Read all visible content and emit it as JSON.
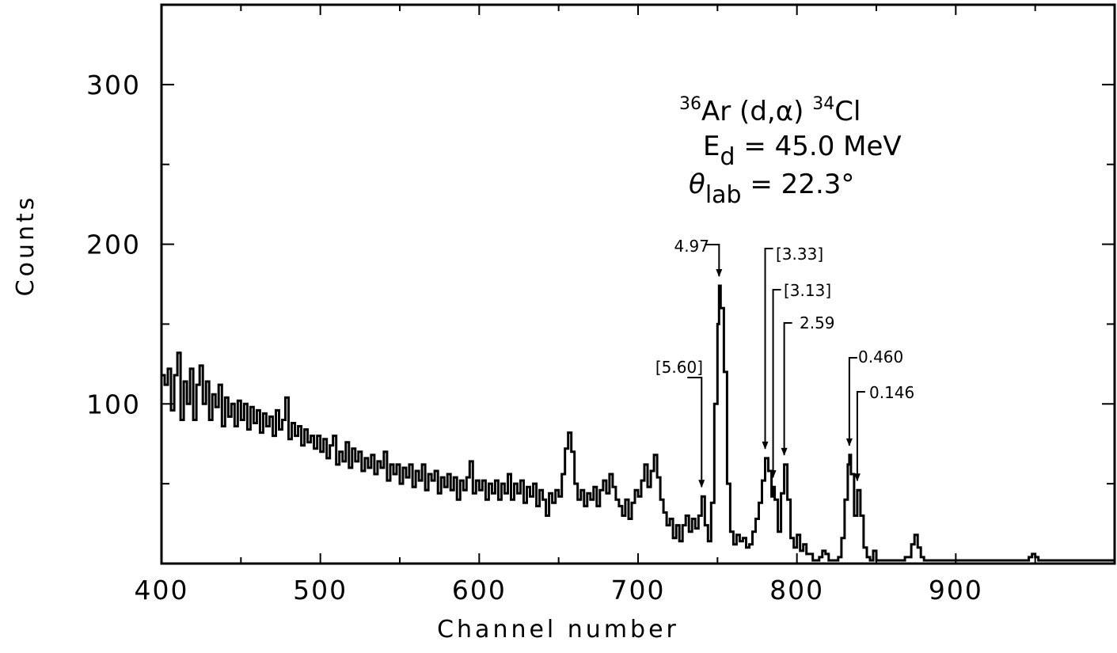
{
  "chart_data": {
    "type": "line",
    "xlabel": "Channel number",
    "ylabel": "Counts",
    "xlim": [
      400,
      1000
    ],
    "ylim": [
      0,
      350
    ],
    "x_ticks": [
      400,
      500,
      600,
      700,
      800,
      900
    ],
    "y_ticks": [
      100,
      200,
      300
    ],
    "x_minor_step": 50,
    "y_minor_step": 50,
    "grid": false,
    "annotation": {
      "reaction": {
        "a": "36",
        "target": "Ar",
        "mid": " (d,α) ",
        "b": "34",
        "product": "Cl"
      },
      "energy": {
        "sym": "E",
        "sub": "d",
        "rest": " = 45.0 MeV"
      },
      "angle": {
        "sym": "θ",
        "sub": "lab",
        "rest": " = 22.3°"
      }
    },
    "peaks": [
      {
        "label": "[5.60]",
        "x": 740,
        "y": 42
      },
      {
        "label": "4.97",
        "x": 751,
        "y": 174
      },
      {
        "label": "[3.33]",
        "x": 780,
        "y": 66
      },
      {
        "label": "[3.13]",
        "x": 785,
        "y": 48
      },
      {
        "label": "2.59",
        "x": 792,
        "y": 62
      },
      {
        "label": "0.460",
        "x": 833,
        "y": 68
      },
      {
        "label": "0.146",
        "x": 838,
        "y": 46
      }
    ],
    "series": [
      {
        "values": [
          [
            400,
            118
          ],
          [
            402,
            112
          ],
          [
            404,
            122
          ],
          [
            406,
            96
          ],
          [
            408,
            118
          ],
          [
            410,
            132
          ],
          [
            412,
            90
          ],
          [
            414,
            114
          ],
          [
            416,
            100
          ],
          [
            418,
            122
          ],
          [
            420,
            90
          ],
          [
            422,
            112
          ],
          [
            424,
            124
          ],
          [
            426,
            100
          ],
          [
            428,
            114
          ],
          [
            430,
            90
          ],
          [
            432,
            106
          ],
          [
            434,
            98
          ],
          [
            436,
            112
          ],
          [
            438,
            86
          ],
          [
            440,
            104
          ],
          [
            442,
            92
          ],
          [
            444,
            100
          ],
          [
            446,
            86
          ],
          [
            448,
            102
          ],
          [
            450,
            90
          ],
          [
            452,
            100
          ],
          [
            454,
            84
          ],
          [
            456,
            98
          ],
          [
            458,
            88
          ],
          [
            460,
            96
          ],
          [
            462,
            82
          ],
          [
            464,
            94
          ],
          [
            466,
            86
          ],
          [
            468,
            92
          ],
          [
            470,
            80
          ],
          [
            472,
            96
          ],
          [
            474,
            84
          ],
          [
            476,
            90
          ],
          [
            478,
            104
          ],
          [
            480,
            78
          ],
          [
            482,
            88
          ],
          [
            484,
            80
          ],
          [
            486,
            86
          ],
          [
            488,
            74
          ],
          [
            490,
            84
          ],
          [
            492,
            76
          ],
          [
            494,
            80
          ],
          [
            496,
            72
          ],
          [
            498,
            80
          ],
          [
            500,
            70
          ],
          [
            502,
            78
          ],
          [
            504,
            66
          ],
          [
            506,
            74
          ],
          [
            508,
            80
          ],
          [
            510,
            62
          ],
          [
            512,
            70
          ],
          [
            514,
            64
          ],
          [
            516,
            76
          ],
          [
            518,
            60
          ],
          [
            520,
            72
          ],
          [
            522,
            64
          ],
          [
            524,
            70
          ],
          [
            526,
            58
          ],
          [
            528,
            66
          ],
          [
            530,
            60
          ],
          [
            532,
            68
          ],
          [
            534,
            56
          ],
          [
            536,
            64
          ],
          [
            538,
            60
          ],
          [
            540,
            70
          ],
          [
            542,
            52
          ],
          [
            544,
            62
          ],
          [
            546,
            56
          ],
          [
            548,
            62
          ],
          [
            550,
            50
          ],
          [
            552,
            60
          ],
          [
            554,
            54
          ],
          [
            556,
            62
          ],
          [
            558,
            48
          ],
          [
            560,
            58
          ],
          [
            562,
            52
          ],
          [
            564,
            62
          ],
          [
            566,
            46
          ],
          [
            568,
            56
          ],
          [
            570,
            52
          ],
          [
            572,
            58
          ],
          [
            574,
            44
          ],
          [
            576,
            54
          ],
          [
            578,
            48
          ],
          [
            580,
            56
          ],
          [
            582,
            46
          ],
          [
            584,
            54
          ],
          [
            586,
            40
          ],
          [
            588,
            52
          ],
          [
            590,
            46
          ],
          [
            592,
            54
          ],
          [
            594,
            64
          ],
          [
            596,
            44
          ],
          [
            598,
            52
          ],
          [
            600,
            46
          ],
          [
            602,
            52
          ],
          [
            604,
            40
          ],
          [
            606,
            50
          ],
          [
            608,
            44
          ],
          [
            610,
            52
          ],
          [
            612,
            40
          ],
          [
            614,
            50
          ],
          [
            616,
            44
          ],
          [
            618,
            56
          ],
          [
            620,
            40
          ],
          [
            622,
            50
          ],
          [
            624,
            44
          ],
          [
            626,
            52
          ],
          [
            628,
            38
          ],
          [
            630,
            48
          ],
          [
            632,
            42
          ],
          [
            634,
            50
          ],
          [
            636,
            36
          ],
          [
            638,
            46
          ],
          [
            640,
            40
          ],
          [
            642,
            30
          ],
          [
            644,
            44
          ],
          [
            646,
            38
          ],
          [
            648,
            46
          ],
          [
            650,
            42
          ],
          [
            652,
            56
          ],
          [
            654,
            72
          ],
          [
            656,
            82
          ],
          [
            658,
            70
          ],
          [
            660,
            50
          ],
          [
            662,
            40
          ],
          [
            664,
            46
          ],
          [
            666,
            36
          ],
          [
            668,
            44
          ],
          [
            670,
            40
          ],
          [
            672,
            48
          ],
          [
            674,
            36
          ],
          [
            676,
            46
          ],
          [
            678,
            52
          ],
          [
            680,
            44
          ],
          [
            682,
            56
          ],
          [
            684,
            48
          ],
          [
            686,
            40
          ],
          [
            688,
            36
          ],
          [
            690,
            30
          ],
          [
            692,
            40
          ],
          [
            694,
            28
          ],
          [
            696,
            38
          ],
          [
            698,
            46
          ],
          [
            700,
            42
          ],
          [
            702,
            52
          ],
          [
            704,
            62
          ],
          [
            706,
            48
          ],
          [
            708,
            58
          ],
          [
            710,
            68
          ],
          [
            712,
            54
          ],
          [
            714,
            40
          ],
          [
            716,
            32
          ],
          [
            718,
            24
          ],
          [
            720,
            28
          ],
          [
            722,
            16
          ],
          [
            724,
            24
          ],
          [
            726,
            14
          ],
          [
            728,
            24
          ],
          [
            730,
            30
          ],
          [
            732,
            20
          ],
          [
            734,
            28
          ],
          [
            736,
            22
          ],
          [
            738,
            30
          ],
          [
            740,
            42
          ],
          [
            742,
            24
          ],
          [
            744,
            14
          ],
          [
            746,
            38
          ],
          [
            748,
            100
          ],
          [
            750,
            150
          ],
          [
            751,
            174
          ],
          [
            752,
            160
          ],
          [
            754,
            120
          ],
          [
            756,
            50
          ],
          [
            758,
            20
          ],
          [
            760,
            12
          ],
          [
            762,
            18
          ],
          [
            764,
            14
          ],
          [
            766,
            16
          ],
          [
            768,
            10
          ],
          [
            770,
            12
          ],
          [
            772,
            20
          ],
          [
            774,
            28
          ],
          [
            776,
            38
          ],
          [
            778,
            52
          ],
          [
            780,
            66
          ],
          [
            782,
            58
          ],
          [
            784,
            42
          ],
          [
            785,
            48
          ],
          [
            786,
            40
          ],
          [
            788,
            20
          ],
          [
            790,
            44
          ],
          [
            792,
            62
          ],
          [
            794,
            40
          ],
          [
            796,
            16
          ],
          [
            798,
            10
          ],
          [
            800,
            18
          ],
          [
            802,
            8
          ],
          [
            804,
            12
          ],
          [
            806,
            6
          ],
          [
            808,
            6
          ],
          [
            810,
            2
          ],
          [
            812,
            2
          ],
          [
            814,
            4
          ],
          [
            816,
            8
          ],
          [
            818,
            6
          ],
          [
            820,
            2
          ],
          [
            822,
            2
          ],
          [
            824,
            2
          ],
          [
            826,
            4
          ],
          [
            828,
            16
          ],
          [
            830,
            40
          ],
          [
            832,
            62
          ],
          [
            833,
            68
          ],
          [
            834,
            56
          ],
          [
            836,
            30
          ],
          [
            838,
            46
          ],
          [
            840,
            30
          ],
          [
            842,
            10
          ],
          [
            844,
            4
          ],
          [
            846,
            2
          ],
          [
            848,
            8
          ],
          [
            850,
            2
          ],
          [
            852,
            2
          ],
          [
            856,
            2
          ],
          [
            860,
            2
          ],
          [
            864,
            2
          ],
          [
            868,
            4
          ],
          [
            870,
            4
          ],
          [
            872,
            12
          ],
          [
            874,
            18
          ],
          [
            876,
            10
          ],
          [
            878,
            4
          ],
          [
            880,
            2
          ],
          [
            884,
            2
          ],
          [
            890,
            2
          ],
          [
            900,
            2
          ],
          [
            910,
            2
          ],
          [
            920,
            2
          ],
          [
            930,
            2
          ],
          [
            940,
            2
          ],
          [
            946,
            4
          ],
          [
            948,
            6
          ],
          [
            950,
            4
          ],
          [
            952,
            2
          ],
          [
            960,
            2
          ],
          [
            970,
            2
          ],
          [
            980,
            2
          ],
          [
            990,
            2
          ],
          [
            1000,
            2
          ]
        ]
      }
    ]
  }
}
